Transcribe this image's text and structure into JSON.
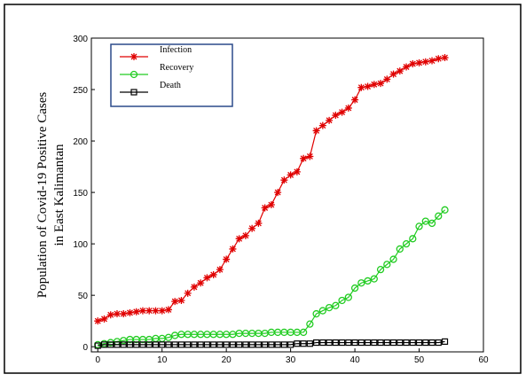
{
  "chart_data": {
    "type": "line",
    "ylabel": [
      "Population of Covid-19 Positive Cases",
      "in East Kalimantan"
    ],
    "x": [
      0,
      1,
      2,
      3,
      4,
      5,
      6,
      7,
      8,
      9,
      10,
      11,
      12,
      13,
      14,
      15,
      16,
      17,
      18,
      19,
      20,
      21,
      22,
      23,
      24,
      25,
      26,
      27,
      28,
      29,
      30,
      31,
      32,
      33,
      34,
      35,
      36,
      37,
      38,
      39,
      40,
      41,
      42,
      43,
      44,
      45,
      46,
      47,
      48,
      49,
      50,
      51,
      52,
      53,
      54
    ],
    "series": [
      {
        "name": "Infection",
        "color": "#e00000",
        "marker": "star",
        "values": [
          25,
          27,
          31,
          32,
          32,
          33,
          34,
          35,
          35,
          35,
          35,
          36,
          44,
          45,
          52,
          58,
          62,
          67,
          70,
          75,
          85,
          95,
          105,
          108,
          115,
          120,
          135,
          138,
          150,
          162,
          167,
          170,
          183,
          185,
          210,
          215,
          220,
          225,
          228,
          232,
          240,
          252,
          253,
          255,
          256,
          260,
          265,
          268,
          272,
          275,
          276,
          277,
          278,
          280,
          281
        ]
      },
      {
        "name": "Recovery",
        "color": "#22cc22",
        "marker": "circle",
        "values": [
          2,
          3,
          4,
          5,
          6,
          7,
          7,
          7,
          7,
          8,
          8,
          9,
          11,
          12,
          12,
          12,
          12,
          12,
          12,
          12,
          12,
          12,
          13,
          13,
          13,
          13,
          13,
          14,
          14,
          14,
          14,
          14,
          14,
          22,
          32,
          35,
          38,
          40,
          45,
          48,
          57,
          62,
          64,
          66,
          75,
          80,
          85,
          95,
          100,
          105,
          117,
          122,
          120,
          127,
          133
        ]
      },
      {
        "name": "Death",
        "color": "#000000",
        "marker": "square",
        "values": [
          1,
          2,
          2,
          2,
          2,
          2,
          2,
          2,
          2,
          2,
          2,
          2,
          2,
          2,
          2,
          2,
          2,
          2,
          2,
          2,
          2,
          2,
          2,
          2,
          2,
          2,
          2,
          2,
          2,
          2,
          2,
          3,
          3,
          3,
          4,
          4,
          4,
          4,
          4,
          4,
          4,
          4,
          4,
          4,
          4,
          4,
          4,
          4,
          4,
          4,
          4,
          4,
          4,
          4,
          5
        ]
      }
    ],
    "xlim": [
      -1,
      60
    ],
    "ylim": [
      -5,
      300
    ],
    "xticks": [
      0,
      10,
      20,
      30,
      40,
      50,
      60
    ],
    "yticks": [
      0,
      50,
      100,
      150,
      200,
      250,
      300
    ],
    "legend": "upper left"
  }
}
